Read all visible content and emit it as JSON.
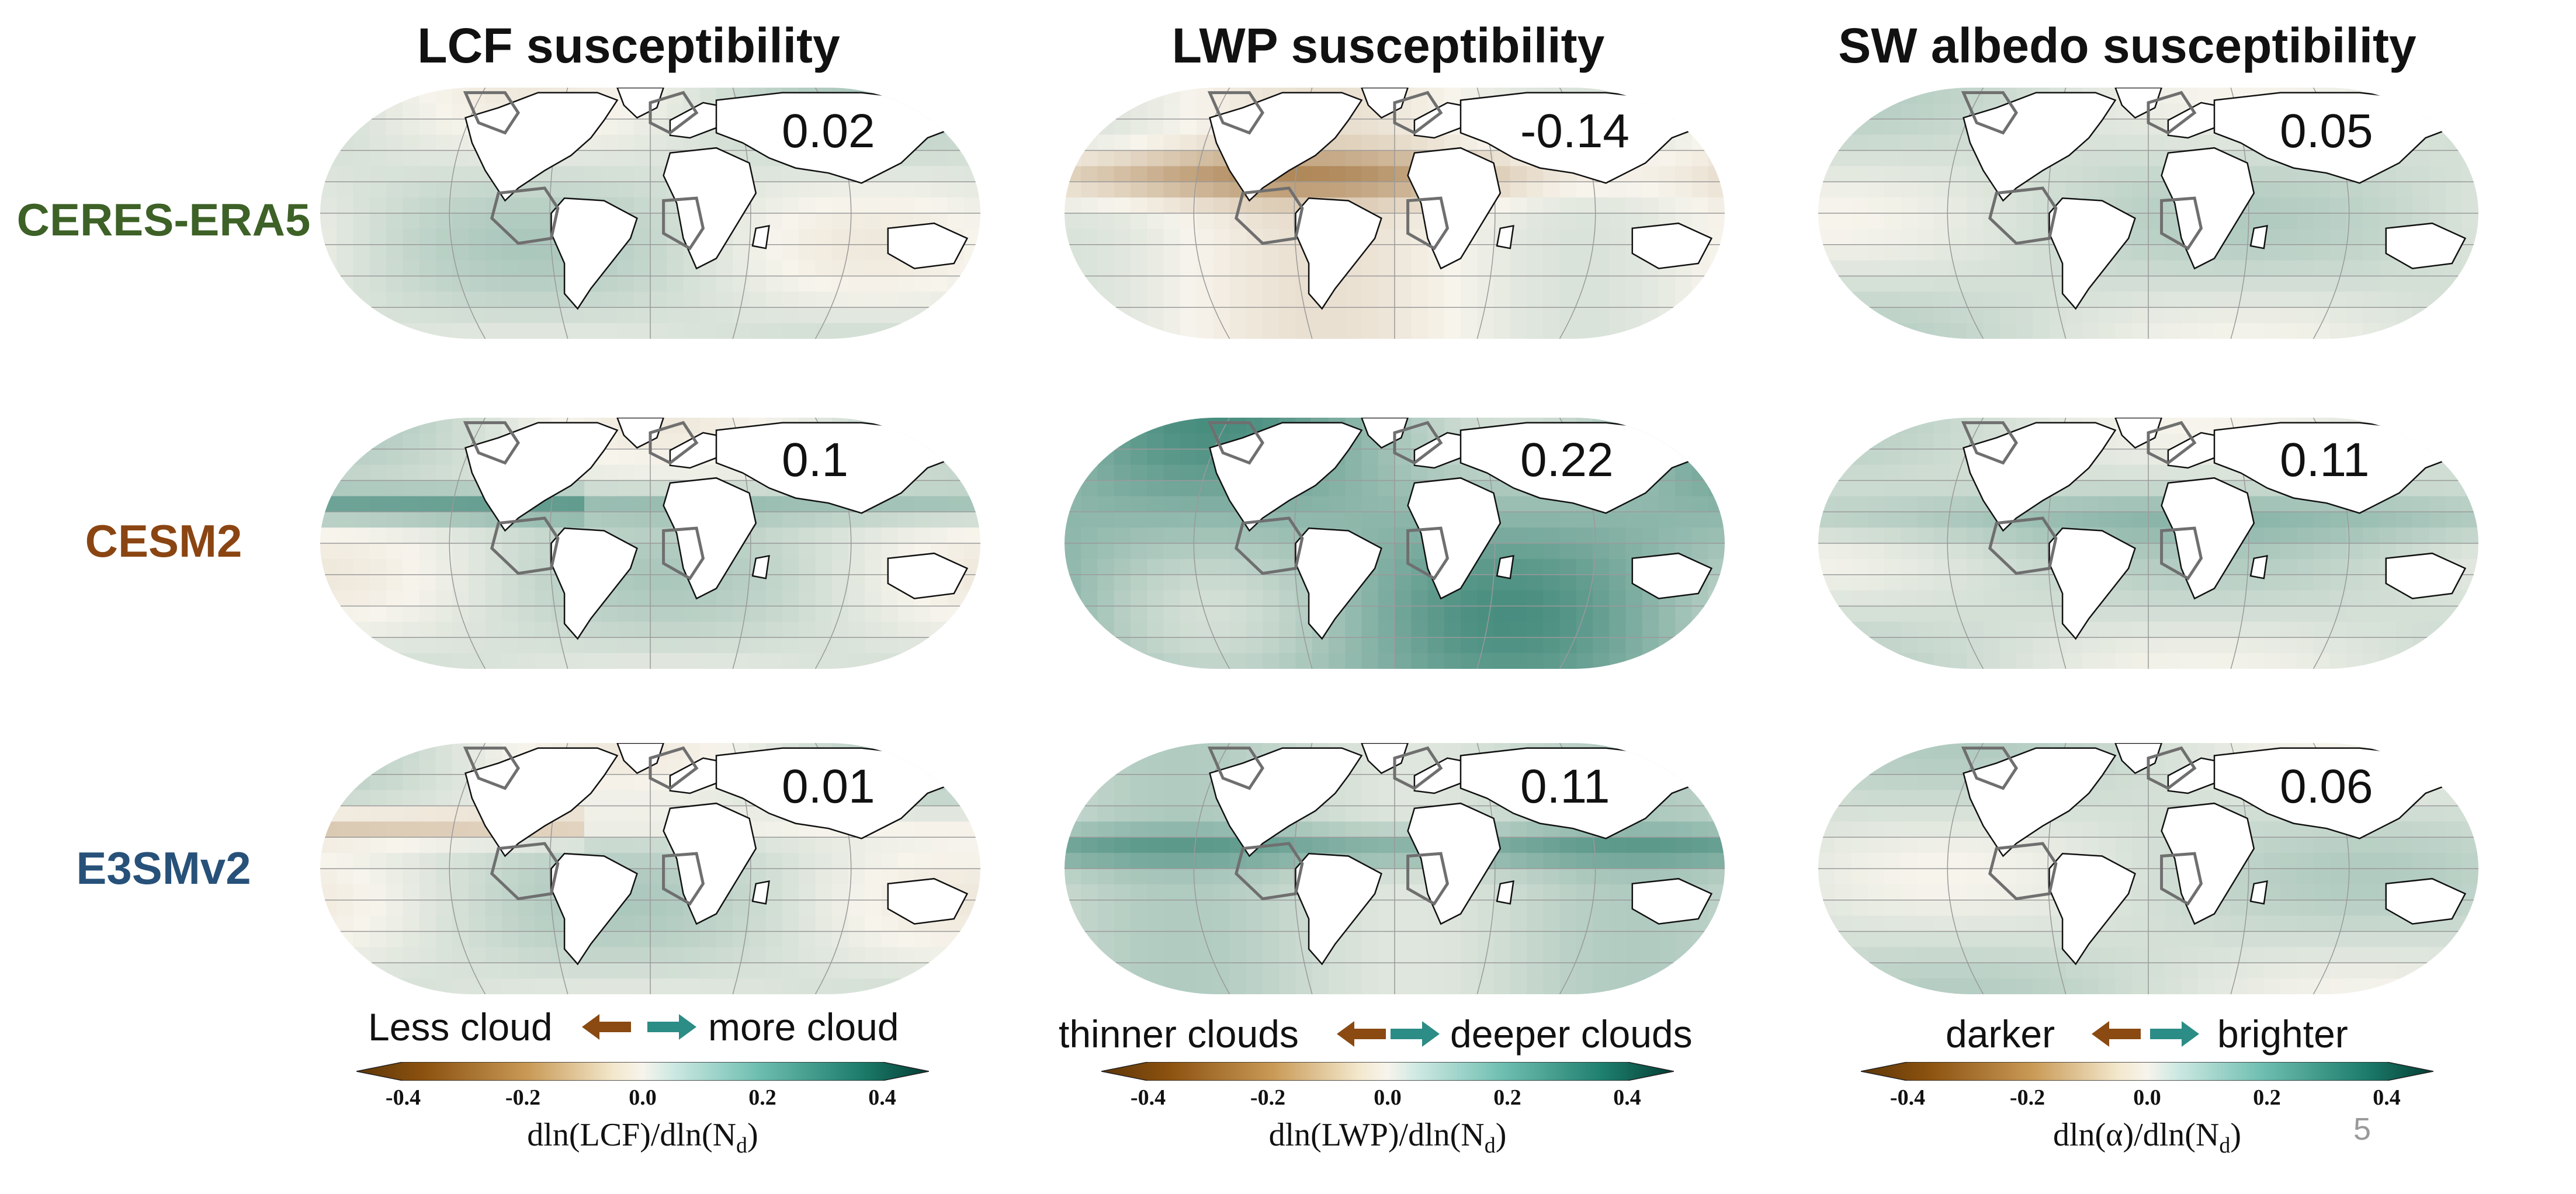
{
  "columns": [
    {
      "title": "LCF susceptibility"
    },
    {
      "title": "LWP susceptibility"
    },
    {
      "title": "SW albedo susceptibility"
    }
  ],
  "rows": [
    {
      "label": "CERES-ERA5",
      "color": "#3d6126"
    },
    {
      "label": "CESM2",
      "color": "#8a4512"
    },
    {
      "label": "E3SMv2",
      "color": "#275179"
    }
  ],
  "values": [
    [
      "0.02",
      "-0.14",
      "0.05"
    ],
    [
      "0.1",
      "0.22",
      "0.11"
    ],
    [
      "0.01",
      "0.11",
      "0.06"
    ]
  ],
  "legends": [
    {
      "left_text": "Less cloud",
      "right_text": "more cloud",
      "cb_title": "dln(LCF)/dln(N",
      "cb_sub": "d",
      "cb_close": ")"
    },
    {
      "left_text": "thinner clouds",
      "right_text": "deeper clouds",
      "cb_title": "dln(LWP)/dln(N",
      "cb_sub": "d",
      "cb_close": ")"
    },
    {
      "left_text": "darker",
      "right_text": "brighter",
      "cb_title": "dln(α)/dln(N",
      "cb_sub": "d",
      "cb_close": ")"
    }
  ],
  "colorbar_ticks": [
    "-0.4",
    "-0.2",
    "0.0",
    "0.2",
    "0.4"
  ],
  "colorbar_range": [
    -0.4,
    0.4
  ],
  "colors": {
    "negative": "#8c5210",
    "neutral": "#f7f4ec",
    "positive": "#0d6b5a",
    "arrow_left": "#8a4a12",
    "arrow_right": "#2c8c86"
  },
  "page_number": "5"
}
